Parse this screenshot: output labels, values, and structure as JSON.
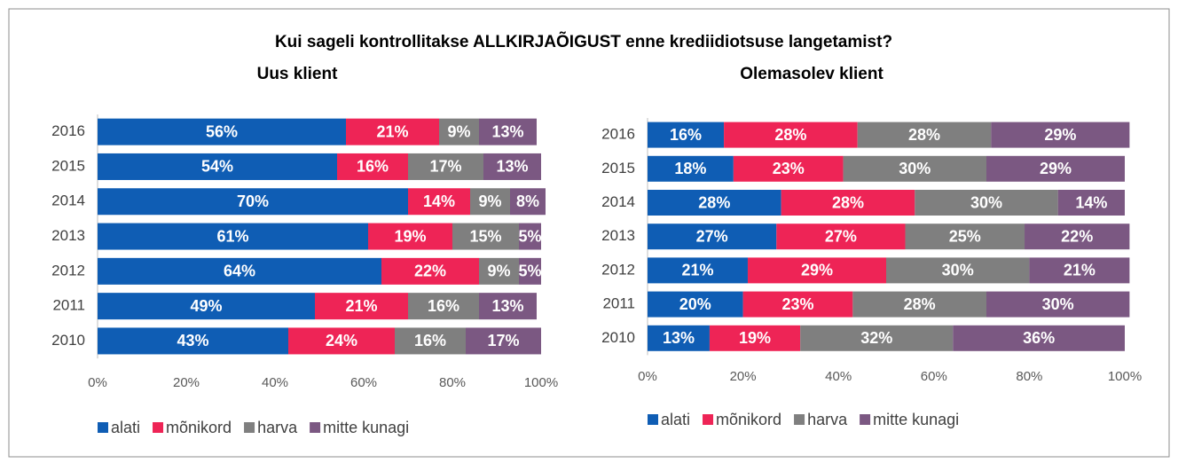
{
  "title": "Kui sageli kontrollitakse ALLKIRJAÕIGUST enne krediidiotsuse langetamist?",
  "chart_data": [
    {
      "type": "stacked-bar-horizontal",
      "title": "Uus klient",
      "categories": [
        "2016",
        "2015",
        "2014",
        "2013",
        "2012",
        "2011",
        "2010"
      ],
      "series": [
        {
          "name": "alati",
          "color": "#0f5db4",
          "values": [
            56,
            54,
            70,
            61,
            64,
            49,
            43
          ],
          "value_labels": [
            "56%",
            "54%",
            "70%",
            "61%",
            "64%",
            "49%",
            "43%"
          ]
        },
        {
          "name": "mõnikord",
          "color": "#ee2456",
          "values": [
            21,
            16,
            14,
            19,
            22,
            21,
            24
          ],
          "value_labels": [
            "21%",
            "16%",
            "14%",
            "19%",
            "22%",
            "21%",
            "24%"
          ]
        },
        {
          "name": "harva",
          "color": "#7f7f7f",
          "values": [
            9,
            17,
            9,
            15,
            9,
            16,
            16
          ],
          "value_labels": [
            "9%",
            "17%",
            "9%",
            "15%",
            "9%",
            "16%",
            "16%"
          ]
        },
        {
          "name": "mitte kunagi",
          "color": "#7b5882",
          "values": [
            13,
            13,
            8,
            5,
            5,
            13,
            17
          ],
          "value_labels": [
            "13%",
            "13%",
            "8%",
            "5%",
            "5%",
            "13%",
            "17%"
          ]
        }
      ],
      "xlim": [
        0,
        100
      ],
      "xticks": [
        {
          "value": 0,
          "label": "0%"
        },
        {
          "value": 20,
          "label": "20%"
        },
        {
          "value": 40,
          "label": "40%"
        },
        {
          "value": 60,
          "label": "60%"
        },
        {
          "value": 80,
          "label": "80%"
        },
        {
          "value": 100,
          "label": "100%"
        }
      ],
      "legend": "bottom"
    },
    {
      "type": "stacked-bar-horizontal",
      "title": "Olemasolev klient",
      "categories": [
        "2016",
        "2015",
        "2014",
        "2013",
        "2012",
        "2011",
        "2010"
      ],
      "series": [
        {
          "name": "alati",
          "color": "#0f5db4",
          "values": [
            16,
            18,
            28,
            27,
            21,
            20,
            13
          ],
          "value_labels": [
            "16%",
            "18%",
            "28%",
            "27%",
            "21%",
            "20%",
            "13%"
          ]
        },
        {
          "name": "mõnikord",
          "color": "#ee2456",
          "values": [
            28,
            23,
            28,
            27,
            29,
            23,
            19
          ],
          "value_labels": [
            "28%",
            "23%",
            "28%",
            "27%",
            "29%",
            "23%",
            "19%"
          ]
        },
        {
          "name": "harva",
          "color": "#7f7f7f",
          "values": [
            28,
            30,
            30,
            25,
            30,
            28,
            32
          ],
          "value_labels": [
            "28%",
            "30%",
            "30%",
            "25%",
            "30%",
            "28%",
            "32%"
          ]
        },
        {
          "name": "mitte kunagi",
          "color": "#7b5882",
          "values": [
            29,
            29,
            14,
            22,
            21,
            30,
            36
          ],
          "value_labels": [
            "29%",
            "29%",
            "14%",
            "22%",
            "21%",
            "30%",
            "36%"
          ]
        }
      ],
      "xlim": [
        0,
        100
      ],
      "xticks": [
        {
          "value": 0,
          "label": "0%"
        },
        {
          "value": 20,
          "label": "20%"
        },
        {
          "value": 40,
          "label": "40%"
        },
        {
          "value": 60,
          "label": "60%"
        },
        {
          "value": 80,
          "label": "80%"
        },
        {
          "value": 100,
          "label": "100%"
        }
      ],
      "legend": "bottom"
    }
  ]
}
